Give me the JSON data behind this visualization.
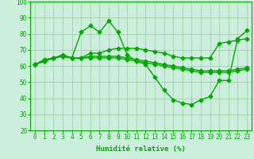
{
  "background_color": "#cceedd",
  "grid_color": "#99cc99",
  "line_color": "#00aa00",
  "marker": "D",
  "markersize": 2.5,
  "linewidth": 1.0,
  "xlim_min": -0.5,
  "xlim_max": 23.5,
  "ylim": [
    20,
    100
  ],
  "yticks": [
    20,
    30,
    40,
    50,
    60,
    70,
    80,
    90,
    100
  ],
  "xlabel": "Humidité relative (%)",
  "xlabel_fontsize": 6.5,
  "tick_fontsize": 5.5,
  "series": [
    [
      61,
      64,
      65,
      67,
      65,
      81,
      85,
      81,
      88,
      81,
      67,
      63,
      61,
      53,
      45,
      39,
      37,
      36,
      39,
      41,
      51,
      51,
      77,
      82
    ],
    [
      61,
      63,
      65,
      66,
      65,
      65,
      68,
      68,
      70,
      71,
      71,
      71,
      70,
      69,
      68,
      66,
      65,
      65,
      65,
      65,
      74,
      75,
      76,
      77
    ],
    [
      61,
      63,
      65,
      66,
      65,
      65,
      66,
      66,
      66,
      66,
      65,
      64,
      63,
      62,
      61,
      60,
      59,
      58,
      57,
      57,
      57,
      57,
      58,
      59
    ],
    [
      61,
      63,
      65,
      66,
      65,
      65,
      65,
      65,
      65,
      65,
      64,
      63,
      62,
      61,
      60,
      59,
      58,
      57,
      56,
      56,
      56,
      56,
      57,
      58
    ]
  ]
}
